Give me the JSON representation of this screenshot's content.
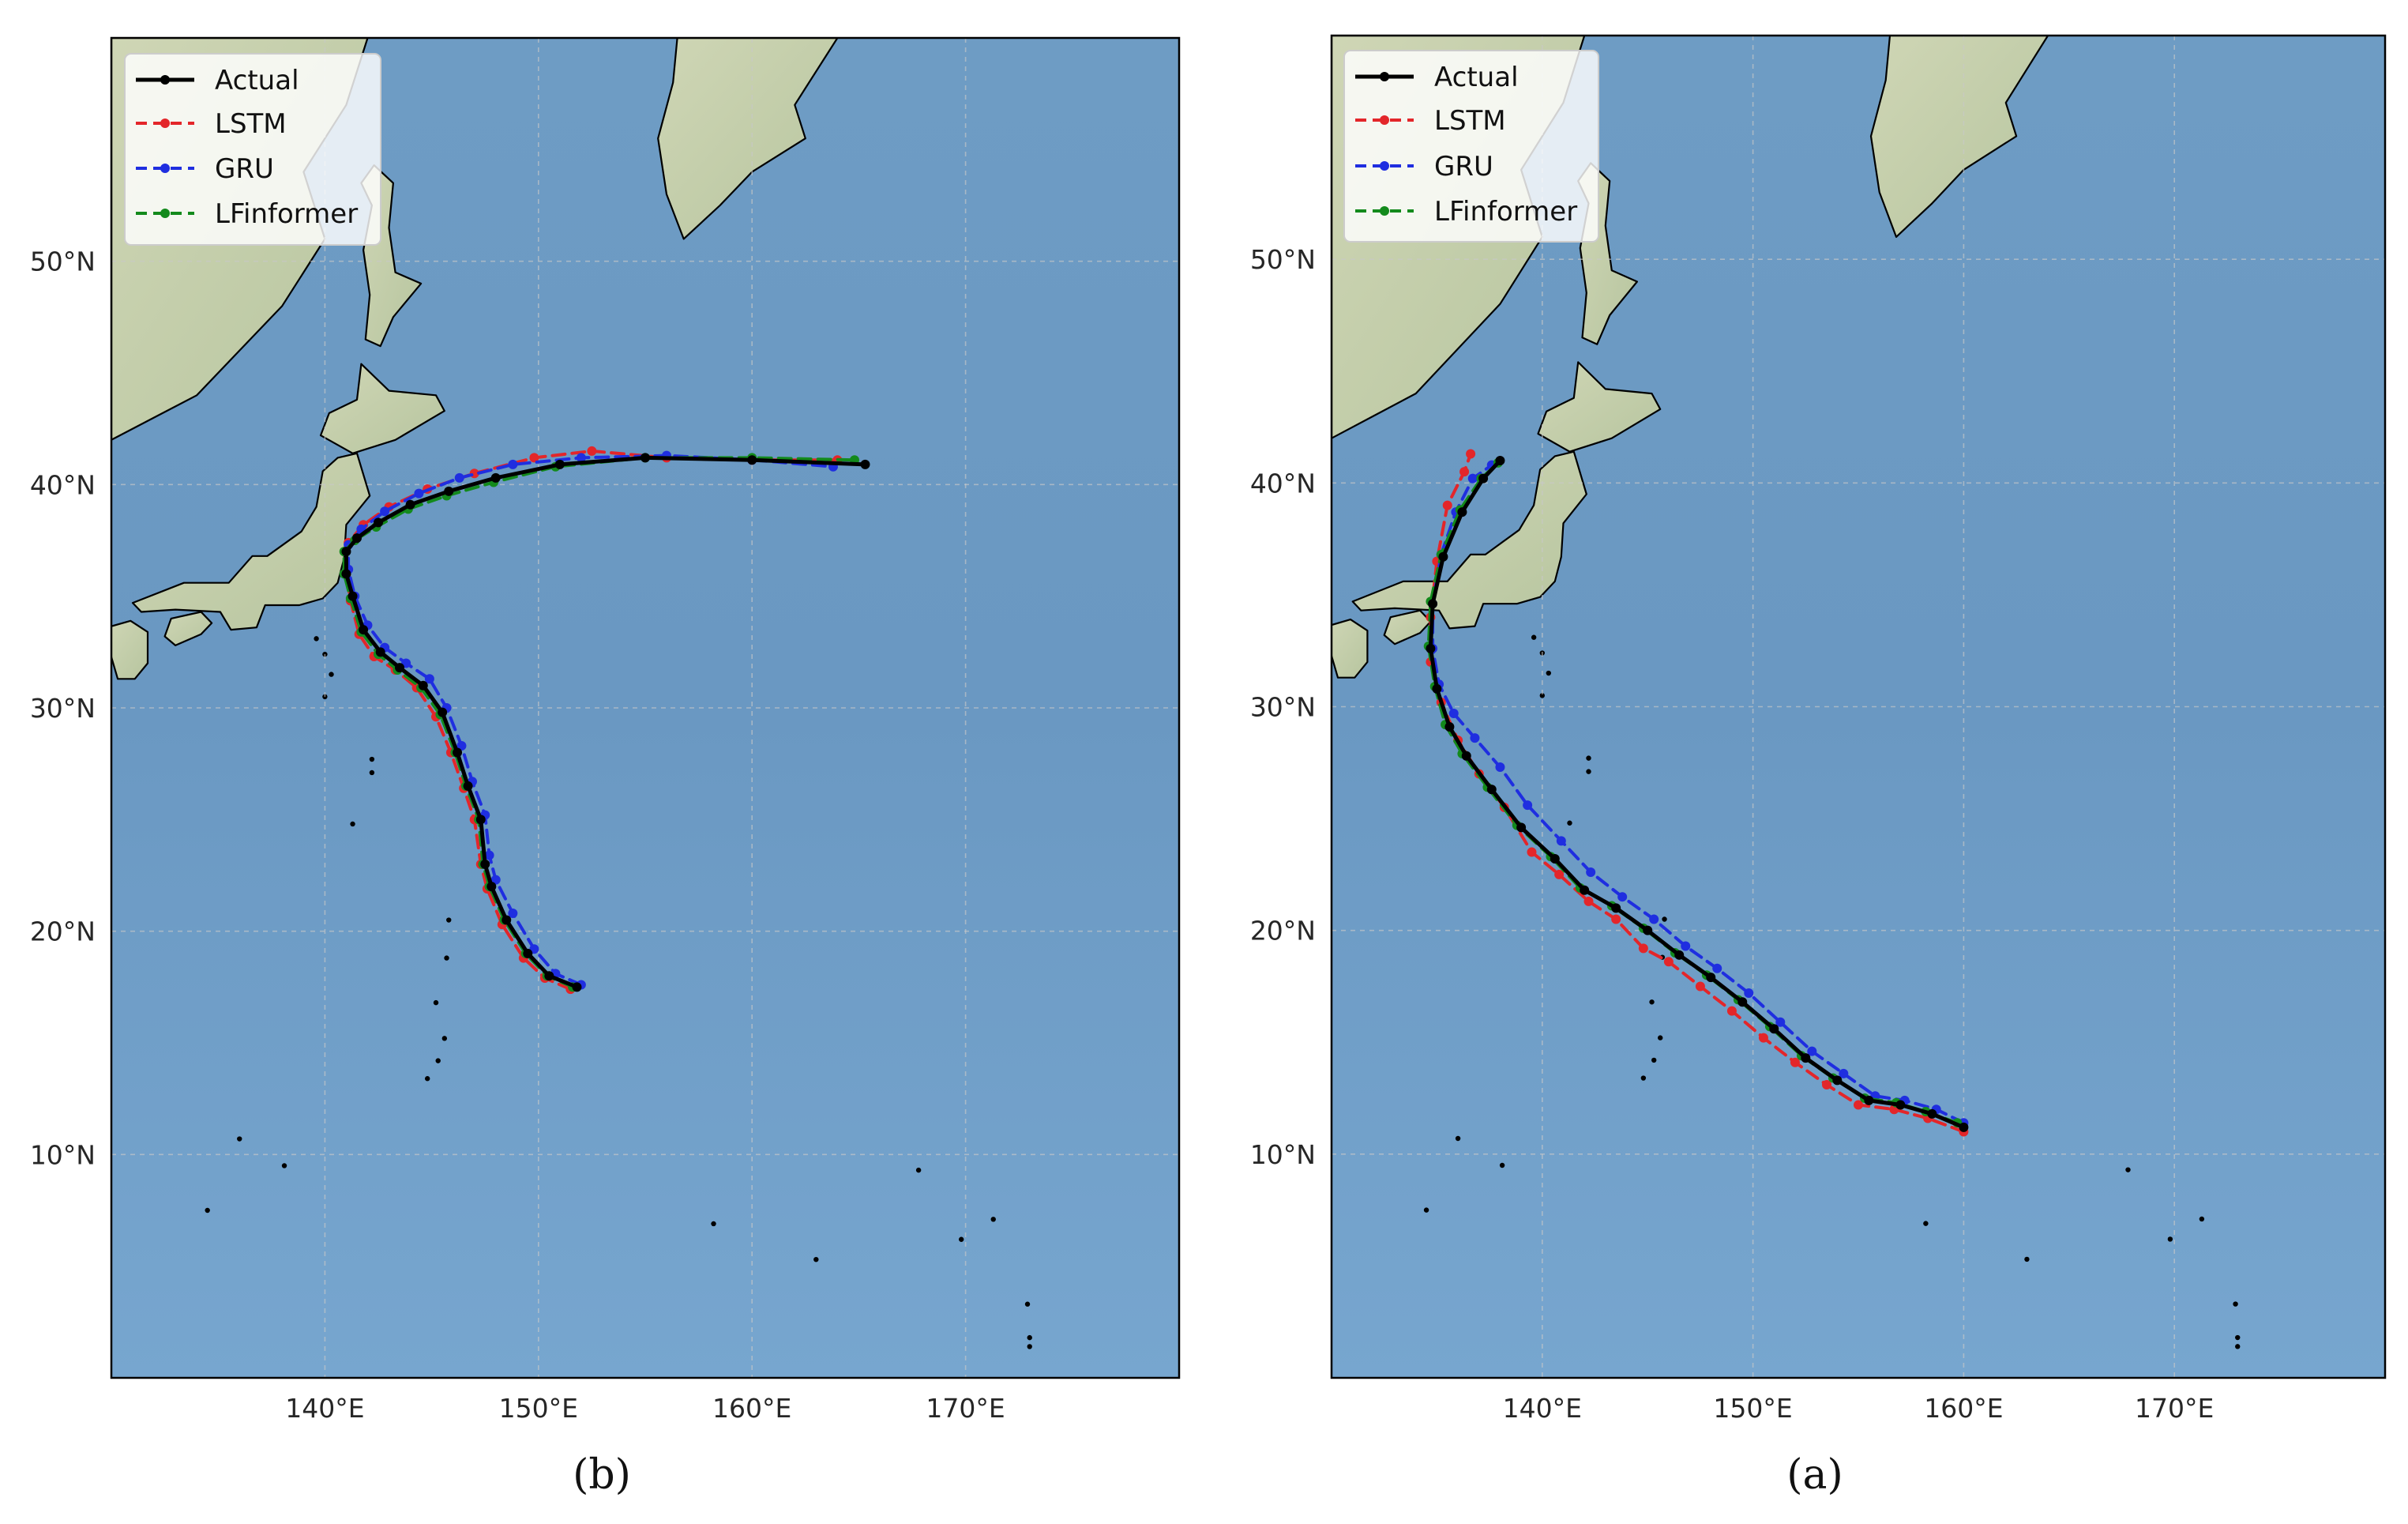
{
  "figure": {
    "panels": [
      {
        "caption": "(b)",
        "legend": [
          "Actual",
          "LSTM",
          "GRU",
          "LFinformer"
        ],
        "lon_ticks": [
          "140°E",
          "150°E",
          "160°E",
          "170°E"
        ],
        "lat_ticks": [
          "10°N",
          "20°N",
          "30°N",
          "40°N",
          "50°N"
        ]
      },
      {
        "caption": "(a)",
        "legend": [
          "Actual",
          "LSTM",
          "GRU",
          "LFinformer"
        ],
        "lon_ticks": [
          "140°E",
          "150°E",
          "160°E",
          "170°E"
        ],
        "lat_ticks": [
          "10°N",
          "20°N",
          "30°N",
          "40°N",
          "50°N"
        ]
      }
    ]
  },
  "chart_data": [
    {
      "type": "line",
      "map": "North-West Pacific",
      "xlim": [
        130,
        180
      ],
      "ylim": [
        0,
        60
      ],
      "grid": true,
      "legend_position": "top-left",
      "series": [
        {
          "name": "Actual",
          "color": "#000000",
          "style": "solid",
          "x": [
            151.8,
            150.5,
            149.5,
            148.5,
            147.8,
            147.5,
            147.3,
            146.7,
            146.2,
            145.5,
            144.6,
            143.5,
            142.6,
            141.8,
            141.3,
            141.0,
            141.0,
            141.5,
            142.5,
            144.0,
            145.8,
            148.0,
            151.0,
            155.0,
            160.0,
            165.3
          ],
          "y": [
            17.5,
            18.0,
            19.0,
            20.5,
            22.0,
            23.0,
            25.0,
            26.5,
            28.0,
            29.8,
            31.0,
            31.8,
            32.5,
            33.5,
            35.0,
            36.0,
            37.0,
            37.6,
            38.3,
            39.1,
            39.7,
            40.3,
            40.9,
            41.2,
            41.1,
            40.9
          ]
        },
        {
          "name": "LSTM",
          "color": "#e3262a",
          "style": "dashed",
          "x": [
            151.5,
            150.3,
            149.3,
            148.3,
            147.6,
            147.3,
            147.0,
            146.5,
            145.9,
            145.2,
            144.3,
            143.3,
            142.3,
            141.6,
            141.2,
            141.0,
            141.1,
            141.8,
            143.0,
            144.8,
            147.0,
            149.8,
            152.5,
            156.0,
            160.0,
            164.0
          ],
          "y": [
            17.4,
            17.9,
            18.8,
            20.3,
            21.9,
            23.0,
            25.0,
            26.4,
            28.0,
            29.6,
            30.9,
            31.7,
            32.3,
            33.3,
            34.8,
            36.0,
            37.4,
            38.2,
            39.0,
            39.8,
            40.5,
            41.2,
            41.5,
            41.2,
            41.1,
            41.1
          ]
        },
        {
          "name": "GRU",
          "color": "#1f2ee0",
          "style": "dashed",
          "x": [
            152.0,
            150.8,
            149.8,
            148.8,
            148.0,
            147.7,
            147.5,
            146.9,
            146.4,
            145.7,
            144.9,
            143.8,
            142.8,
            142.0,
            141.4,
            141.1,
            141.1,
            141.7,
            142.8,
            144.4,
            146.3,
            148.8,
            152.0,
            156.0,
            160.0,
            163.8
          ],
          "y": [
            17.6,
            18.1,
            19.2,
            20.8,
            22.3,
            23.4,
            25.2,
            26.7,
            28.3,
            30.0,
            31.3,
            32.0,
            32.7,
            33.7,
            35.0,
            36.2,
            37.3,
            38.0,
            38.8,
            39.6,
            40.3,
            40.9,
            41.2,
            41.3,
            41.1,
            40.8
          ]
        },
        {
          "name": "LFinformer",
          "color": "#138a1c",
          "style": "dashed",
          "x": [
            151.6,
            150.4,
            149.4,
            148.4,
            147.7,
            147.4,
            147.2,
            146.6,
            146.1,
            145.4,
            144.5,
            143.4,
            142.5,
            141.7,
            141.2,
            140.9,
            140.9,
            141.4,
            142.4,
            143.9,
            145.7,
            147.9,
            150.8,
            155.0,
            160.0,
            164.8
          ],
          "y": [
            17.5,
            18.0,
            19.0,
            20.5,
            22.0,
            23.0,
            25.0,
            26.5,
            28.0,
            29.7,
            30.9,
            31.7,
            32.4,
            33.4,
            34.9,
            36.0,
            37.0,
            37.5,
            38.1,
            38.9,
            39.5,
            40.1,
            40.8,
            41.2,
            41.2,
            41.1
          ]
        }
      ]
    },
    {
      "type": "line",
      "map": "North-West Pacific",
      "xlim": [
        130,
        180
      ],
      "ylim": [
        0,
        60
      ],
      "grid": true,
      "legend_position": "top-left",
      "series": [
        {
          "name": "Actual",
          "color": "#000000",
          "style": "solid",
          "x": [
            160.0,
            158.5,
            157.0,
            155.5,
            154.0,
            152.5,
            151.0,
            149.5,
            148.0,
            146.5,
            145.0,
            143.5,
            142.0,
            140.6,
            139.0,
            137.6,
            136.4,
            135.6,
            135.0,
            134.7,
            134.8,
            135.3,
            136.2,
            137.2,
            138.0
          ],
          "y": [
            11.2,
            11.8,
            12.2,
            12.4,
            13.3,
            14.3,
            15.6,
            16.8,
            17.9,
            18.9,
            20.0,
            21.0,
            21.8,
            23.2,
            24.6,
            26.3,
            27.8,
            29.1,
            30.8,
            32.6,
            34.6,
            36.7,
            38.7,
            40.2,
            41.0
          ]
        },
        {
          "name": "LSTM",
          "color": "#e3262a",
          "style": "dashed",
          "x": [
            160.0,
            158.3,
            156.7,
            155.0,
            153.5,
            152.0,
            150.5,
            149.0,
            147.5,
            146.0,
            144.8,
            143.5,
            142.2,
            140.8,
            139.5,
            138.2,
            137.0,
            136.0,
            135.2,
            134.7,
            134.7,
            135.0,
            135.5,
            136.3,
            136.6
          ],
          "y": [
            11.0,
            11.6,
            12.0,
            12.2,
            13.1,
            14.1,
            15.2,
            16.4,
            17.5,
            18.6,
            19.2,
            20.5,
            21.3,
            22.5,
            23.5,
            25.5,
            27.0,
            28.5,
            30.2,
            32.0,
            34.0,
            36.5,
            39.0,
            40.5,
            41.3
          ]
        },
        {
          "name": "GRU",
          "color": "#1f2ee0",
          "style": "dashed",
          "x": [
            160.0,
            158.7,
            157.2,
            155.8,
            154.3,
            152.8,
            151.3,
            149.8,
            148.3,
            146.8,
            145.3,
            143.8,
            142.3,
            140.9,
            139.3,
            138.0,
            136.8,
            135.8,
            135.1,
            134.8,
            134.8,
            135.2,
            135.9,
            136.7,
            137.6
          ],
          "y": [
            11.4,
            12.0,
            12.4,
            12.6,
            13.6,
            14.6,
            15.9,
            17.2,
            18.3,
            19.3,
            20.5,
            21.5,
            22.6,
            24.0,
            25.6,
            27.3,
            28.6,
            29.7,
            31.0,
            32.6,
            34.6,
            36.8,
            38.7,
            40.2,
            40.8
          ]
        },
        {
          "name": "LFinformer",
          "color": "#138a1c",
          "style": "dashed",
          "x": [
            159.7,
            158.2,
            156.8,
            155.3,
            153.8,
            152.3,
            150.8,
            149.3,
            147.8,
            146.3,
            144.8,
            143.3,
            141.8,
            140.4,
            138.8,
            137.4,
            136.2,
            135.4,
            134.9,
            134.6,
            134.7,
            135.2,
            136.1,
            137.1,
            137.9
          ],
          "y": [
            11.4,
            11.9,
            12.3,
            12.5,
            13.4,
            14.4,
            15.7,
            16.9,
            18.0,
            19.0,
            20.1,
            21.1,
            21.9,
            23.3,
            24.7,
            26.4,
            27.9,
            29.2,
            30.9,
            32.7,
            34.7,
            36.8,
            38.8,
            40.2,
            40.9
          ]
        }
      ]
    }
  ]
}
